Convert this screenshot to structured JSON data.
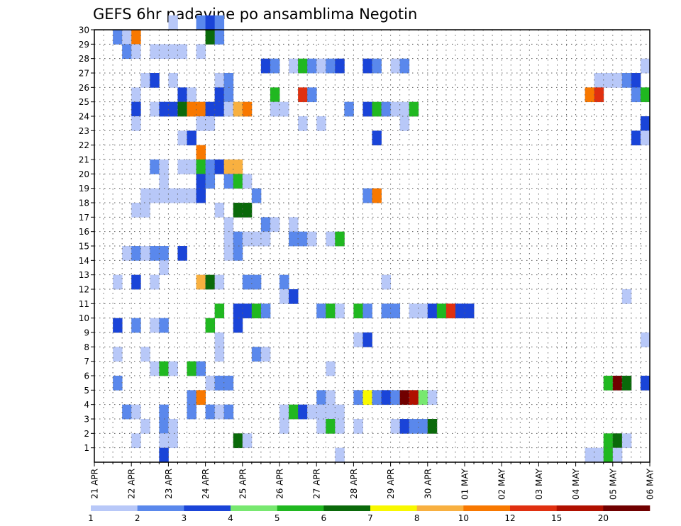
{
  "chart_data": {
    "type": "heatmap",
    "title": "GEFS 6hr padavine po ansamblima Negotin",
    "xlabel": "",
    "ylabel": "",
    "x_tick_labels": [
      "21 APR",
      "22 APR",
      "23 APR",
      "24 APR",
      "25 APR",
      "26 APR",
      "27 APR",
      "28 APR",
      "29 APR",
      "30 APR",
      "01 MAY",
      "02 MAY",
      "03 MAY",
      "04 MAY",
      "05 MAY",
      "06 MAY"
    ],
    "y_tick_labels": [
      "1",
      "2",
      "3",
      "4",
      "5",
      "6",
      "7",
      "8",
      "9",
      "10",
      "11",
      "12",
      "13",
      "14",
      "15",
      "16",
      "17",
      "18",
      "19",
      "20",
      "21",
      "22",
      "23",
      "24",
      "25",
      "26",
      "27",
      "28",
      "29",
      "30"
    ],
    "members": 30,
    "steps": 60,
    "step_hours": 6,
    "grid": true,
    "legend": {
      "placement": "bottom",
      "levels": [
        "1",
        "2",
        "3",
        "4",
        "5",
        "6",
        "7",
        "8",
        "10",
        "12",
        "15",
        "20"
      ],
      "colors": [
        "#b8c8f8",
        "#5a88ec",
        "#1a44d8",
        "#78e870",
        "#20b820",
        "#0a6a0a",
        "#f8f800",
        "#f8b040",
        "#f87800",
        "#e03010",
        "#b01000",
        "#700000"
      ]
    },
    "cells": [
      [
        30,
        8,
        1
      ],
      [
        30,
        11,
        2
      ],
      [
        30,
        12,
        3
      ],
      [
        30,
        13,
        2
      ],
      [
        29,
        2,
        2
      ],
      [
        29,
        3,
        1
      ],
      [
        29,
        4,
        10
      ],
      [
        29,
        12,
        6
      ],
      [
        29,
        13,
        2
      ],
      [
        28,
        3,
        2
      ],
      [
        28,
        4,
        1
      ],
      [
        28,
        6,
        1
      ],
      [
        28,
        7,
        1
      ],
      [
        28,
        8,
        1
      ],
      [
        28,
        9,
        1
      ],
      [
        28,
        11,
        1
      ],
      [
        27,
        18,
        3
      ],
      [
        27,
        19,
        2
      ],
      [
        27,
        21,
        1
      ],
      [
        27,
        22,
        5
      ],
      [
        27,
        23,
        2
      ],
      [
        27,
        24,
        1
      ],
      [
        27,
        25,
        2
      ],
      [
        27,
        26,
        3
      ],
      [
        27,
        29,
        3
      ],
      [
        27,
        30,
        2
      ],
      [
        27,
        32,
        1
      ],
      [
        27,
        33,
        2
      ],
      [
        27,
        59,
        1
      ],
      [
        26,
        5,
        1
      ],
      [
        26,
        6,
        3
      ],
      [
        26,
        8,
        1
      ],
      [
        26,
        13,
        1
      ],
      [
        26,
        14,
        2
      ],
      [
        26,
        54,
        1
      ],
      [
        26,
        55,
        1
      ],
      [
        26,
        56,
        1
      ],
      [
        26,
        57,
        2
      ],
      [
        26,
        58,
        3
      ],
      [
        25,
        4,
        1
      ],
      [
        25,
        9,
        3
      ],
      [
        25,
        10,
        1
      ],
      [
        25,
        13,
        3
      ],
      [
        25,
        14,
        2
      ],
      [
        25,
        19,
        5
      ],
      [
        25,
        22,
        12
      ],
      [
        25,
        23,
        2
      ],
      [
        25,
        53,
        10
      ],
      [
        25,
        54,
        12
      ],
      [
        25,
        58,
        2
      ],
      [
        25,
        59,
        5
      ],
      [
        24,
        4,
        3
      ],
      [
        24,
        6,
        1
      ],
      [
        24,
        7,
        3
      ],
      [
        24,
        8,
        3
      ],
      [
        24,
        9,
        6
      ],
      [
        24,
        10,
        10
      ],
      [
        24,
        11,
        10
      ],
      [
        24,
        12,
        3
      ],
      [
        24,
        13,
        3
      ],
      [
        24,
        14,
        1
      ],
      [
        24,
        15,
        8
      ],
      [
        24,
        16,
        10
      ],
      [
        24,
        19,
        1
      ],
      [
        24,
        20,
        1
      ],
      [
        24,
        27,
        2
      ],
      [
        24,
        29,
        3
      ],
      [
        24,
        30,
        5
      ],
      [
        24,
        31,
        2
      ],
      [
        24,
        32,
        1
      ],
      [
        24,
        33,
        1
      ],
      [
        24,
        34,
        5
      ],
      [
        23,
        4,
        1
      ],
      [
        23,
        11,
        1
      ],
      [
        23,
        12,
        1
      ],
      [
        23,
        22,
        1
      ],
      [
        23,
        24,
        1
      ],
      [
        23,
        33,
        1
      ],
      [
        23,
        59,
        3
      ],
      [
        22,
        9,
        1
      ],
      [
        22,
        10,
        3
      ],
      [
        22,
        30,
        3
      ],
      [
        22,
        58,
        3
      ],
      [
        22,
        59,
        1
      ],
      [
        21,
        11,
        10
      ],
      [
        20,
        6,
        2
      ],
      [
        20,
        7,
        1
      ],
      [
        20,
        9,
        1
      ],
      [
        20,
        10,
        1
      ],
      [
        20,
        11,
        5
      ],
      [
        20,
        12,
        2
      ],
      [
        20,
        13,
        3
      ],
      [
        20,
        14,
        8
      ],
      [
        20,
        15,
        8
      ],
      [
        19,
        7,
        1
      ],
      [
        19,
        11,
        3
      ],
      [
        19,
        12,
        2
      ],
      [
        19,
        14,
        2
      ],
      [
        19,
        15,
        5
      ],
      [
        19,
        16,
        1
      ],
      [
        18,
        5,
        1
      ],
      [
        18,
        6,
        1
      ],
      [
        18,
        7,
        1
      ],
      [
        18,
        8,
        1
      ],
      [
        18,
        9,
        1
      ],
      [
        18,
        10,
        1
      ],
      [
        18,
        11,
        3
      ],
      [
        18,
        17,
        2
      ],
      [
        18,
        29,
        2
      ],
      [
        18,
        30,
        10
      ],
      [
        17,
        4,
        1
      ],
      [
        17,
        5,
        1
      ],
      [
        17,
        13,
        1
      ],
      [
        17,
        15,
        6
      ],
      [
        17,
        16,
        6
      ],
      [
        16,
        14,
        1
      ],
      [
        16,
        18,
        2
      ],
      [
        16,
        19,
        1
      ],
      [
        16,
        21,
        1
      ],
      [
        15,
        14,
        1
      ],
      [
        15,
        15,
        2
      ],
      [
        15,
        16,
        1
      ],
      [
        15,
        17,
        1
      ],
      [
        15,
        18,
        1
      ],
      [
        15,
        21,
        2
      ],
      [
        15,
        22,
        2
      ],
      [
        15,
        23,
        1
      ],
      [
        15,
        25,
        1
      ],
      [
        15,
        26,
        5
      ],
      [
        14,
        3,
        1
      ],
      [
        14,
        4,
        2
      ],
      [
        14,
        5,
        1
      ],
      [
        14,
        6,
        2
      ],
      [
        14,
        7,
        2
      ],
      [
        14,
        9,
        3
      ],
      [
        14,
        14,
        1
      ],
      [
        14,
        15,
        2
      ],
      [
        13,
        7,
        1
      ],
      [
        12,
        2,
        1
      ],
      [
        12,
        4,
        3
      ],
      [
        12,
        6,
        1
      ],
      [
        12,
        11,
        8
      ],
      [
        12,
        12,
        6
      ],
      [
        12,
        13,
        1
      ],
      [
        12,
        16,
        2
      ],
      [
        12,
        17,
        2
      ],
      [
        12,
        20,
        2
      ],
      [
        12,
        31,
        1
      ],
      [
        11,
        20,
        1
      ],
      [
        11,
        21,
        3
      ],
      [
        11,
        57,
        1
      ],
      [
        10,
        13,
        5
      ],
      [
        10,
        15,
        3
      ],
      [
        10,
        16,
        3
      ],
      [
        10,
        17,
        5
      ],
      [
        10,
        18,
        2
      ],
      [
        10,
        24,
        2
      ],
      [
        10,
        25,
        5
      ],
      [
        10,
        26,
        1
      ],
      [
        10,
        28,
        5
      ],
      [
        10,
        29,
        2
      ],
      [
        10,
        31,
        2
      ],
      [
        10,
        32,
        2
      ],
      [
        10,
        34,
        1
      ],
      [
        10,
        35,
        1
      ],
      [
        10,
        36,
        3
      ],
      [
        10,
        37,
        5
      ],
      [
        10,
        38,
        12
      ],
      [
        10,
        39,
        3
      ],
      [
        10,
        40,
        3
      ],
      [
        9,
        2,
        3
      ],
      [
        9,
        4,
        2
      ],
      [
        9,
        6,
        1
      ],
      [
        9,
        7,
        2
      ],
      [
        9,
        12,
        5
      ],
      [
        9,
        15,
        3
      ],
      [
        8,
        13,
        1
      ],
      [
        8,
        28,
        1
      ],
      [
        8,
        29,
        3
      ],
      [
        8,
        59,
        1
      ],
      [
        7,
        2,
        1
      ],
      [
        7,
        5,
        1
      ],
      [
        7,
        13,
        1
      ],
      [
        7,
        17,
        2
      ],
      [
        7,
        18,
        1
      ],
      [
        6,
        6,
        1
      ],
      [
        6,
        7,
        5
      ],
      [
        6,
        8,
        1
      ],
      [
        6,
        10,
        5
      ],
      [
        6,
        11,
        2
      ],
      [
        6,
        25,
        1
      ],
      [
        5,
        2,
        2
      ],
      [
        5,
        12,
        1
      ],
      [
        5,
        13,
        2
      ],
      [
        5,
        14,
        2
      ],
      [
        5,
        55,
        5
      ],
      [
        5,
        56,
        20
      ],
      [
        5,
        57,
        6
      ],
      [
        5,
        59,
        3
      ],
      [
        4,
        10,
        2
      ],
      [
        4,
        11,
        10
      ],
      [
        4,
        24,
        2
      ],
      [
        4,
        25,
        1
      ],
      [
        4,
        28,
        2
      ],
      [
        4,
        29,
        7
      ],
      [
        4,
        30,
        2
      ],
      [
        4,
        31,
        3
      ],
      [
        4,
        32,
        2
      ],
      [
        4,
        33,
        20
      ],
      [
        4,
        34,
        15
      ],
      [
        4,
        35,
        4
      ],
      [
        4,
        36,
        1
      ],
      [
        3,
        3,
        2
      ],
      [
        3,
        4,
        1
      ],
      [
        3,
        7,
        2
      ],
      [
        3,
        10,
        2
      ],
      [
        3,
        12,
        2
      ],
      [
        3,
        13,
        1
      ],
      [
        3,
        14,
        2
      ],
      [
        3,
        20,
        1
      ],
      [
        3,
        21,
        5
      ],
      [
        3,
        22,
        3
      ],
      [
        3,
        23,
        1
      ],
      [
        3,
        24,
        1
      ],
      [
        3,
        25,
        1
      ],
      [
        3,
        26,
        1
      ],
      [
        2,
        5,
        1
      ],
      [
        2,
        7,
        2
      ],
      [
        2,
        8,
        1
      ],
      [
        2,
        20,
        1
      ],
      [
        2,
        24,
        1
      ],
      [
        2,
        25,
        5
      ],
      [
        2,
        26,
        1
      ],
      [
        2,
        28,
        1
      ],
      [
        2,
        32,
        1
      ],
      [
        2,
        33,
        3
      ],
      [
        2,
        34,
        2
      ],
      [
        2,
        35,
        2
      ],
      [
        2,
        36,
        6
      ],
      [
        1,
        4,
        1
      ],
      [
        1,
        7,
        1
      ],
      [
        1,
        8,
        1
      ],
      [
        1,
        15,
        6
      ],
      [
        1,
        16,
        1
      ],
      [
        1,
        55,
        5
      ],
      [
        1,
        56,
        6
      ],
      [
        1,
        57,
        1
      ],
      [
        0,
        7,
        3
      ],
      [
        0,
        26,
        1
      ],
      [
        0,
        53,
        1
      ],
      [
        0,
        54,
        1
      ],
      [
        0,
        55,
        5
      ],
      [
        0,
        56,
        1
      ]
    ]
  }
}
